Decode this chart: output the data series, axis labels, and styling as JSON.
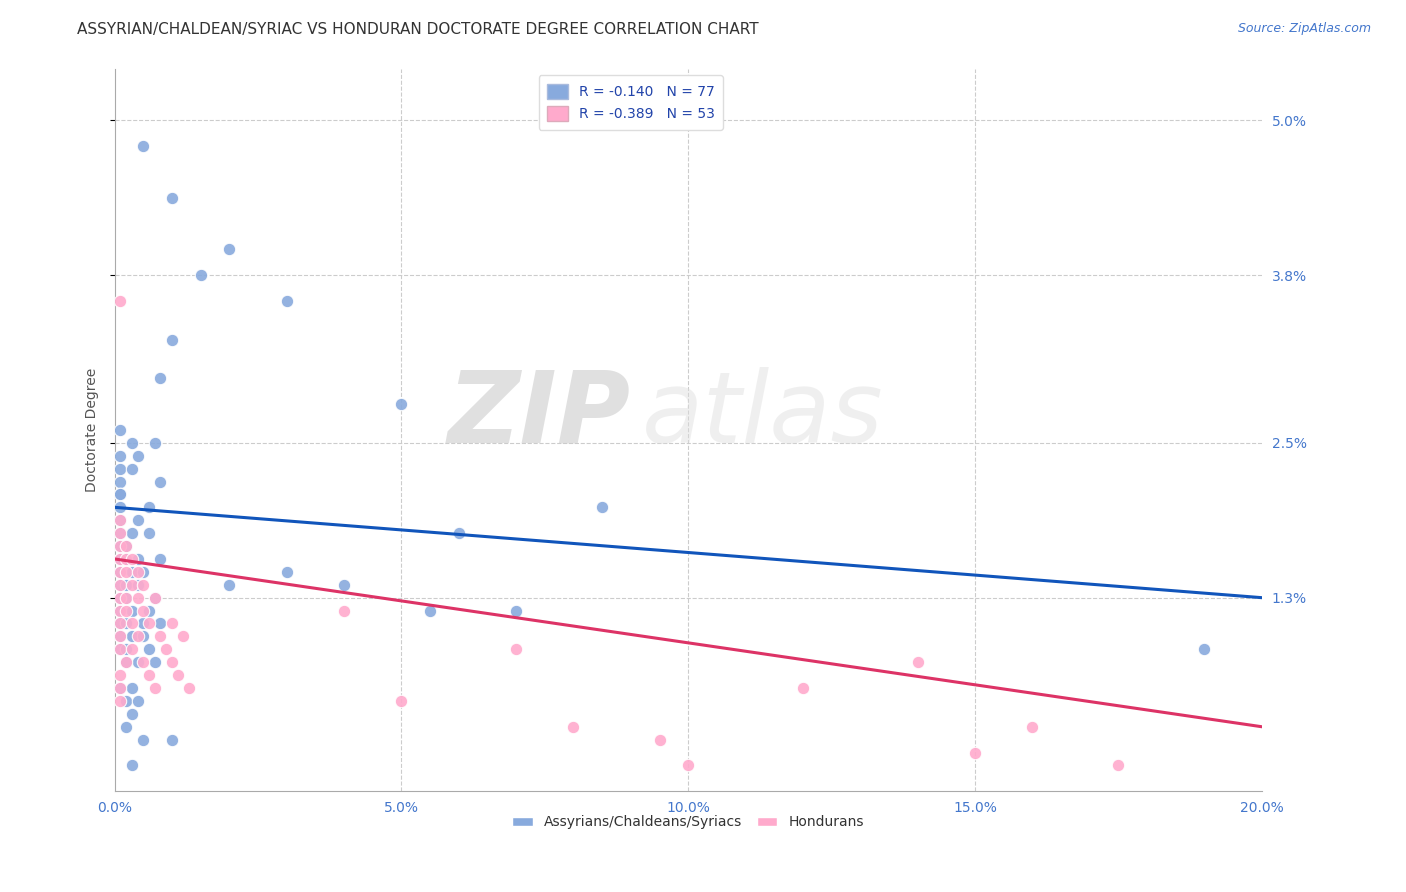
{
  "title": "ASSYRIAN/CHALDEAN/SYRIAC VS HONDURAN DOCTORATE DEGREE CORRELATION CHART",
  "source": "Source: ZipAtlas.com",
  "ylabel": "Doctorate Degree",
  "xlim": [
    0.0,
    0.2
  ],
  "ylim": [
    -0.002,
    0.054
  ],
  "yticks": [
    0.013,
    0.025,
    0.038,
    0.05
  ],
  "ytick_labels": [
    "1.3%",
    "2.5%",
    "3.8%",
    "5.0%"
  ],
  "xticks": [
    0.0,
    0.05,
    0.1,
    0.15,
    0.2
  ],
  "xtick_labels": [
    "0.0%",
    "5.0%",
    "10.0%",
    "15.0%",
    "20.0%"
  ],
  "grid_color": "#cccccc",
  "background_color": "#ffffff",
  "blue_color": "#88aadd",
  "pink_color": "#ffaacc",
  "blue_line_color": "#1155bb",
  "pink_line_color": "#dd3366",
  "R_blue": -0.14,
  "N_blue": 77,
  "R_pink": -0.389,
  "N_pink": 53,
  "legend_label_blue": "Assyrians/Chaldeans/Syriacs",
  "legend_label_pink": "Hondurans",
  "blue_scatter": [
    [
      0.005,
      0.048
    ],
    [
      0.01,
      0.044
    ],
    [
      0.02,
      0.04
    ],
    [
      0.015,
      0.038
    ],
    [
      0.03,
      0.036
    ],
    [
      0.01,
      0.033
    ],
    [
      0.008,
      0.03
    ],
    [
      0.05,
      0.028
    ],
    [
      0.001,
      0.026
    ],
    [
      0.003,
      0.025
    ],
    [
      0.007,
      0.025
    ],
    [
      0.001,
      0.024
    ],
    [
      0.004,
      0.024
    ],
    [
      0.001,
      0.023
    ],
    [
      0.003,
      0.023
    ],
    [
      0.001,
      0.022
    ],
    [
      0.008,
      0.022
    ],
    [
      0.001,
      0.021
    ],
    [
      0.001,
      0.021
    ],
    [
      0.001,
      0.02
    ],
    [
      0.006,
      0.02
    ],
    [
      0.085,
      0.02
    ],
    [
      0.001,
      0.019
    ],
    [
      0.001,
      0.019
    ],
    [
      0.004,
      0.019
    ],
    [
      0.001,
      0.018
    ],
    [
      0.003,
      0.018
    ],
    [
      0.006,
      0.018
    ],
    [
      0.06,
      0.018
    ],
    [
      0.001,
      0.017
    ],
    [
      0.001,
      0.017
    ],
    [
      0.002,
      0.017
    ],
    [
      0.002,
      0.017
    ],
    [
      0.001,
      0.016
    ],
    [
      0.002,
      0.016
    ],
    [
      0.004,
      0.016
    ],
    [
      0.008,
      0.016
    ],
    [
      0.001,
      0.015
    ],
    [
      0.001,
      0.015
    ],
    [
      0.003,
      0.015
    ],
    [
      0.005,
      0.015
    ],
    [
      0.03,
      0.015
    ],
    [
      0.001,
      0.014
    ],
    [
      0.002,
      0.014
    ],
    [
      0.004,
      0.014
    ],
    [
      0.02,
      0.014
    ],
    [
      0.04,
      0.014
    ],
    [
      0.001,
      0.013
    ],
    [
      0.002,
      0.013
    ],
    [
      0.007,
      0.013
    ],
    [
      0.001,
      0.012
    ],
    [
      0.003,
      0.012
    ],
    [
      0.006,
      0.012
    ],
    [
      0.055,
      0.012
    ],
    [
      0.07,
      0.012
    ],
    [
      0.001,
      0.011
    ],
    [
      0.002,
      0.011
    ],
    [
      0.005,
      0.011
    ],
    [
      0.008,
      0.011
    ],
    [
      0.001,
      0.01
    ],
    [
      0.003,
      0.01
    ],
    [
      0.005,
      0.01
    ],
    [
      0.001,
      0.009
    ],
    [
      0.002,
      0.009
    ],
    [
      0.006,
      0.009
    ],
    [
      0.002,
      0.008
    ],
    [
      0.004,
      0.008
    ],
    [
      0.007,
      0.008
    ],
    [
      0.001,
      0.006
    ],
    [
      0.003,
      0.006
    ],
    [
      0.002,
      0.005
    ],
    [
      0.004,
      0.005
    ],
    [
      0.003,
      0.004
    ],
    [
      0.002,
      0.003
    ],
    [
      0.005,
      0.002
    ],
    [
      0.01,
      0.002
    ],
    [
      0.003,
      0.0
    ],
    [
      0.19,
      0.009
    ]
  ],
  "pink_scatter": [
    [
      0.001,
      0.036
    ],
    [
      0.001,
      0.019
    ],
    [
      0.001,
      0.018
    ],
    [
      0.001,
      0.017
    ],
    [
      0.002,
      0.017
    ],
    [
      0.001,
      0.016
    ],
    [
      0.002,
      0.016
    ],
    [
      0.003,
      0.016
    ],
    [
      0.001,
      0.015
    ],
    [
      0.002,
      0.015
    ],
    [
      0.004,
      0.015
    ],
    [
      0.001,
      0.014
    ],
    [
      0.003,
      0.014
    ],
    [
      0.005,
      0.014
    ],
    [
      0.001,
      0.013
    ],
    [
      0.002,
      0.013
    ],
    [
      0.004,
      0.013
    ],
    [
      0.007,
      0.013
    ],
    [
      0.001,
      0.012
    ],
    [
      0.002,
      0.012
    ],
    [
      0.005,
      0.012
    ],
    [
      0.04,
      0.012
    ],
    [
      0.001,
      0.011
    ],
    [
      0.003,
      0.011
    ],
    [
      0.006,
      0.011
    ],
    [
      0.01,
      0.011
    ],
    [
      0.001,
      0.01
    ],
    [
      0.004,
      0.01
    ],
    [
      0.008,
      0.01
    ],
    [
      0.012,
      0.01
    ],
    [
      0.001,
      0.009
    ],
    [
      0.003,
      0.009
    ],
    [
      0.009,
      0.009
    ],
    [
      0.07,
      0.009
    ],
    [
      0.002,
      0.008
    ],
    [
      0.005,
      0.008
    ],
    [
      0.01,
      0.008
    ],
    [
      0.14,
      0.008
    ],
    [
      0.001,
      0.007
    ],
    [
      0.006,
      0.007
    ],
    [
      0.011,
      0.007
    ],
    [
      0.001,
      0.006
    ],
    [
      0.007,
      0.006
    ],
    [
      0.013,
      0.006
    ],
    [
      0.12,
      0.006
    ],
    [
      0.001,
      0.005
    ],
    [
      0.05,
      0.005
    ],
    [
      0.08,
      0.003
    ],
    [
      0.16,
      0.003
    ],
    [
      0.095,
      0.002
    ],
    [
      0.15,
      0.001
    ],
    [
      0.1,
      0.0
    ],
    [
      0.175,
      0.0
    ]
  ],
  "blue_line_x": [
    0.0,
    0.2
  ],
  "blue_line_y": [
    0.02,
    0.013
  ],
  "pink_line_x": [
    0.0,
    0.2
  ],
  "pink_line_y": [
    0.016,
    0.003
  ],
  "watermark_zip": "ZIP",
  "watermark_atlas": "atlas",
  "title_fontsize": 11,
  "axis_label_fontsize": 10,
  "tick_fontsize": 10,
  "legend_fontsize": 10,
  "source_fontsize": 9
}
